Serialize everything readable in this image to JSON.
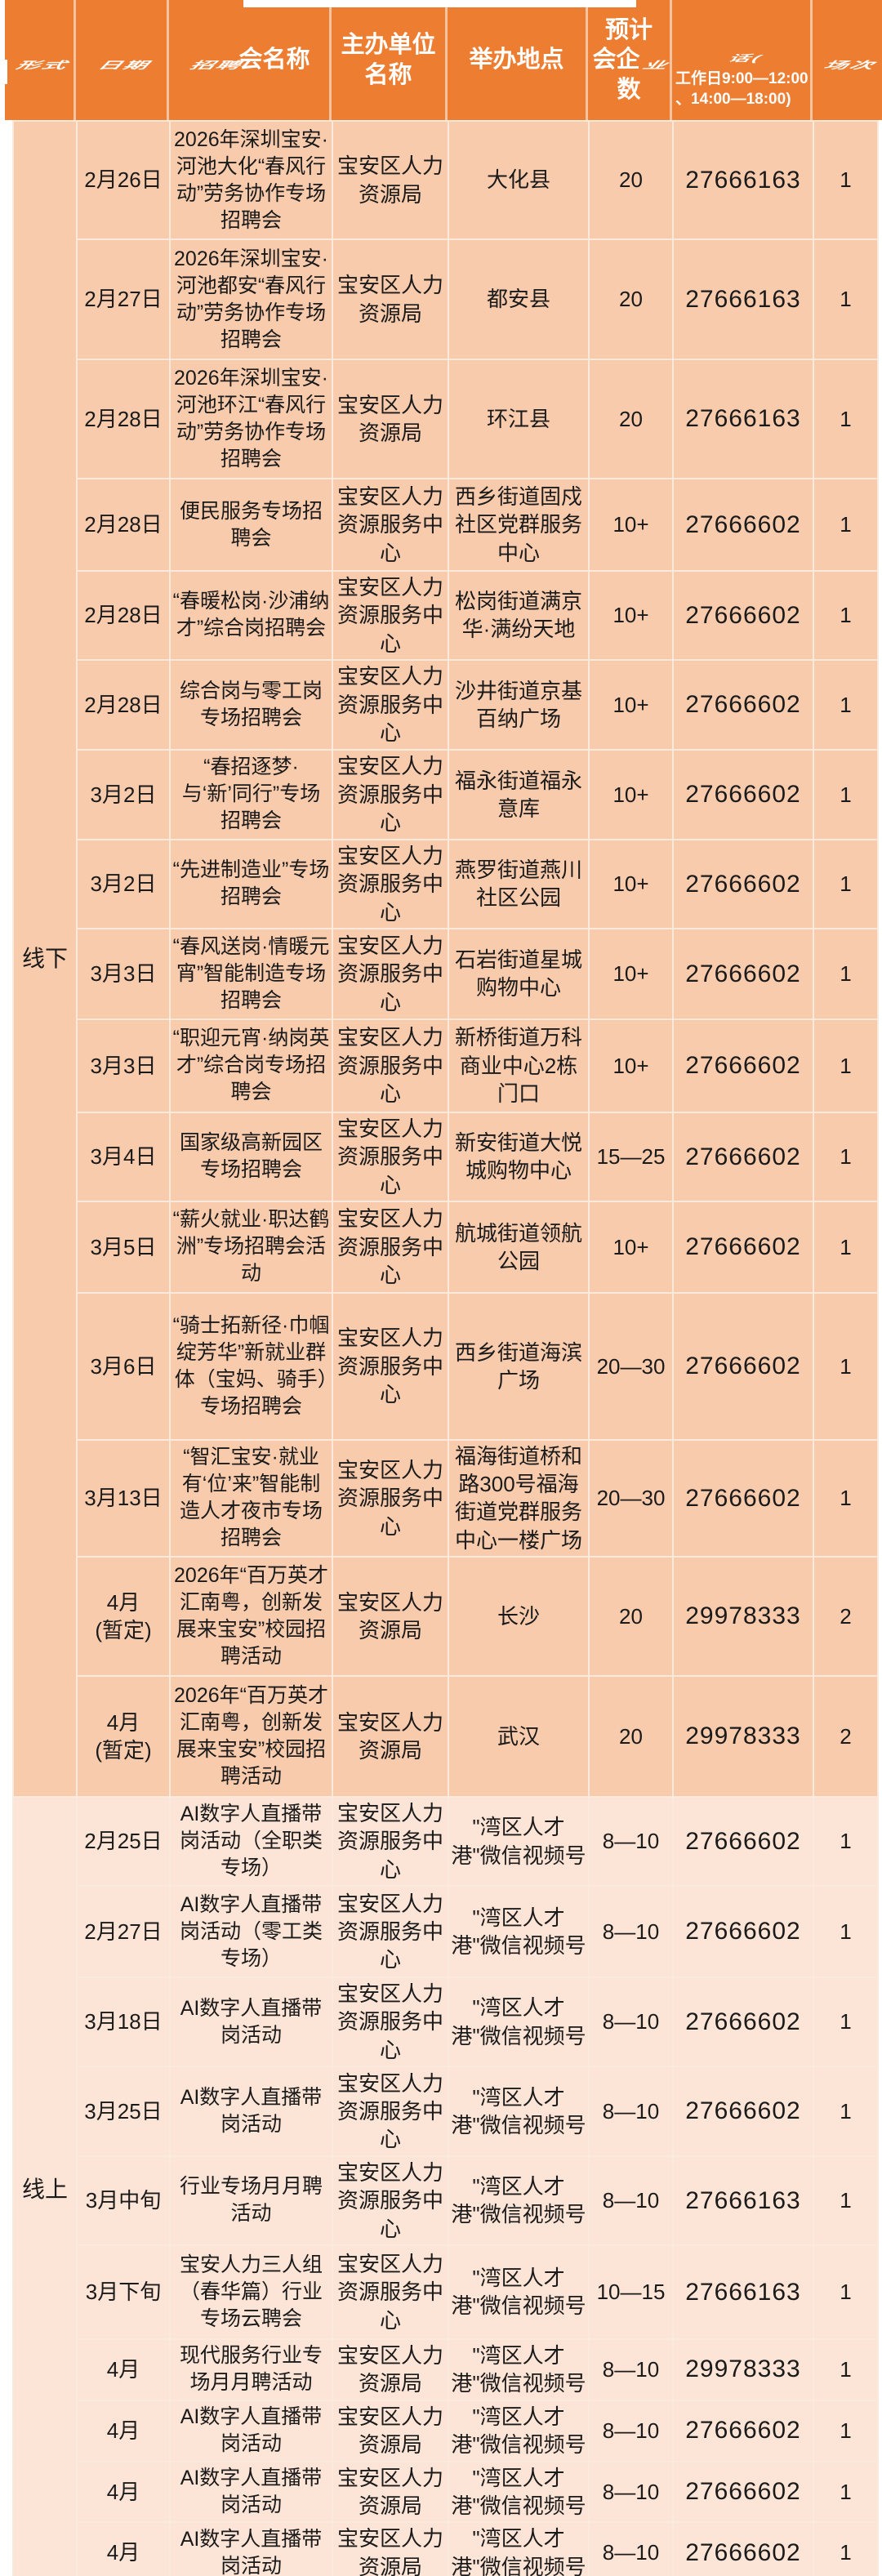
{
  "header": {
    "col_form": "形式",
    "col_date": "日期",
    "col_name_warped": "招聘",
    "col_name_rest": "会名称",
    "col_organizer": "主办单位名称",
    "col_venue": "举办地点",
    "col_companies": {
      "line1": "预计",
      "line2_plain": "会企",
      "line2_warped": "业",
      "line3": "数"
    },
    "col_phone": {
      "warped": "话(",
      "line1": "工作日9:00—12:00",
      "line2": "、14:00—18:00)"
    },
    "col_sessions": "场次"
  },
  "sections": [
    {
      "label": "线下",
      "rows": [
        {
          "date": "2月26日",
          "name": "2026年深圳宝安·河池大化“春风行动”劳务协作专场招聘会",
          "organizer": "宝安区人力资源局",
          "venue": "大化县",
          "companies": "20",
          "phone": "27666163",
          "sessions": "1"
        },
        {
          "date": "2月27日",
          "name": "2026年深圳宝安·河池都安“春风行动”劳务协作专场招聘会",
          "organizer": "宝安区人力资源局",
          "venue": "都安县",
          "companies": "20",
          "phone": "27666163",
          "sessions": "1"
        },
        {
          "date": "2月28日",
          "name": "2026年深圳宝安·河池环江“春风行动”劳务协作专场招聘会",
          "organizer": "宝安区人力资源局",
          "venue": "环江县",
          "companies": "20",
          "phone": "27666163",
          "sessions": "1"
        },
        {
          "date": "2月28日",
          "name": "便民服务专场招聘会",
          "organizer": "宝安区人力资源服务中心",
          "venue": "西乡街道固戍社区党群服务中心",
          "companies": "10+",
          "phone": "27666602",
          "sessions": "1"
        },
        {
          "date": "2月28日",
          "name": "“春暖松岗·沙浦纳才”综合岗招聘会",
          "organizer": "宝安区人力资源服务中心",
          "venue": "松岗街道满京华·满纷天地",
          "companies": "10+",
          "phone": "27666602",
          "sessions": "1"
        },
        {
          "date": "2月28日",
          "name": "综合岗与零工岗专场招聘会",
          "organizer": "宝安区人力资源服务中心",
          "venue": "沙井街道京基百纳广场",
          "companies": "10+",
          "phone": "27666602",
          "sessions": "1"
        },
        {
          "date": "3月2日",
          "name": "“春招逐梦·与‘新’同行”专场招聘会",
          "organizer": "宝安区人力资源服务中心",
          "venue": "福永街道福永意库",
          "companies": "10+",
          "phone": "27666602",
          "sessions": "1"
        },
        {
          "date": "3月2日",
          "name": "“先进制造业”专场招聘会",
          "organizer": "宝安区人力资源服务中心",
          "venue": "燕罗街道燕川社区公园",
          "companies": "10+",
          "phone": "27666602",
          "sessions": "1"
        },
        {
          "date": "3月3日",
          "name": "“春风送岗·情暖元宵”智能制造专场招聘会",
          "organizer": "宝安区人力资源服务中心",
          "venue": "石岩街道星城购物中心",
          "companies": "10+",
          "phone": "27666602",
          "sessions": "1"
        },
        {
          "date": "3月3日",
          "name": "“职迎元宵·纳岗英才”综合岗专场招聘会",
          "organizer": "宝安区人力资源服务中心",
          "venue": "新桥街道万科商业中心2栋门口",
          "companies": "10+",
          "phone": "27666602",
          "sessions": "1"
        },
        {
          "date": "3月4日",
          "name": "国家级高新园区专场招聘会",
          "organizer": "宝安区人力资源服务中心",
          "venue": "新安街道大悦城购物中心",
          "companies": "15—25",
          "phone": "27666602",
          "sessions": "1"
        },
        {
          "date": "3月5日",
          "name": "“薪火就业·职达鹤洲”专场招聘会活动",
          "organizer": "宝安区人力资源服务中心",
          "venue": "航城街道领航公园",
          "companies": "10+",
          "phone": "27666602",
          "sessions": "1"
        },
        {
          "date": "3月6日",
          "name": "“骑士拓新径·巾帼绽芳华”新就业群体（宝妈、骑手）专场招聘会",
          "organizer": "宝安区人力资源服务中心",
          "venue": "西乡街道海滨广场",
          "companies": "20—30",
          "phone": "27666602",
          "sessions": "1"
        },
        {
          "date": "3月13日",
          "name": "“智汇宝安·就业有‘位’来”智能制造人才夜市专场招聘会",
          "organizer": "宝安区人力资源服务中心",
          "venue": "福海街道桥和路300号福海街道党群服务中心一楼广场",
          "companies": "20—30",
          "phone": "27666602",
          "sessions": "1"
        },
        {
          "date": "4月\n(暂定)",
          "name": "2026年“百万英才汇南粤，创新发展来宝安”校园招聘活动",
          "organizer": "宝安区人力资源局",
          "venue": "长沙",
          "companies": "20",
          "phone": "29978333",
          "sessions": "2"
        },
        {
          "date": "4月\n(暂定)",
          "name": "2026年“百万英才汇南粤，创新发展来宝安”校园招聘活动",
          "organizer": "宝安区人力资源局",
          "venue": "武汉",
          "companies": "20",
          "phone": "29978333",
          "sessions": "2"
        }
      ]
    },
    {
      "label": "线上",
      "rows": [
        {
          "date": "2月25日",
          "name": "AI数字人直播带岗活动（全职类专场）",
          "organizer": "宝安区人力资源服务中心",
          "venue": "\"湾区人才港\"微信视频号",
          "companies": "8—10",
          "phone": "27666602",
          "sessions": "1"
        },
        {
          "date": "2月27日",
          "name": "AI数字人直播带岗活动（零工类专场）",
          "organizer": "宝安区人力资源服务中心",
          "venue": "\"湾区人才港\"微信视频号",
          "companies": "8—10",
          "phone": "27666602",
          "sessions": "1"
        },
        {
          "date": "3月18日",
          "name": "AI数字人直播带岗活动",
          "organizer": "宝安区人力资源服务中心",
          "venue": "\"湾区人才港\"微信视频号",
          "companies": "8—10",
          "phone": "27666602",
          "sessions": "1"
        },
        {
          "date": "3月25日",
          "name": "AI数字人直播带岗活动",
          "organizer": "宝安区人力资源服务中心",
          "venue": "\"湾区人才港\"微信视频号",
          "companies": "8—10",
          "phone": "27666602",
          "sessions": "1"
        },
        {
          "date": "3月中旬",
          "name": "行业专场月月聘活动",
          "organizer": "宝安区人力资源服务中心",
          "venue": "\"湾区人才港\"微信视频号",
          "companies": "8—10",
          "phone": "27666163",
          "sessions": "1"
        },
        {
          "date": "3月下旬",
          "name": "宝安人力三人组（春华篇）行业专场云聘会",
          "organizer": "宝安区人力资源服务中心",
          "venue": "\"湾区人才港\"微信视频号",
          "companies": "10—15",
          "phone": "27666163",
          "sessions": "1"
        },
        {
          "date": "4月",
          "name": "现代服务行业专场月月聘活动",
          "organizer": "宝安区人力资源局",
          "venue": "\"湾区人才港\"微信视频号",
          "companies": "8—10",
          "phone": "29978333",
          "sessions": "1"
        },
        {
          "date": "4月",
          "name": "AI数字人直播带岗活动",
          "organizer": "宝安区人力资源局",
          "venue": "\"湾区人才港\"微信视频号",
          "companies": "8—10",
          "phone": "27666602",
          "sessions": "1"
        },
        {
          "date": "4月",
          "name": "AI数字人直播带岗活动",
          "organizer": "宝安区人力资源局",
          "venue": "\"湾区人才港\"微信视频号",
          "companies": "8—10",
          "phone": "27666602",
          "sessions": "1"
        },
        {
          "date": "4月",
          "name": "AI数字人直播带岗活动",
          "organizer": "宝安区人力资源局",
          "venue": "\"湾区人才港\"微信视频号",
          "companies": "8—10",
          "phone": "27666602",
          "sessions": "1"
        }
      ]
    }
  ],
  "colors": {
    "header_bg": "#ED7D31",
    "offline_row_bg": "#F8CBAD",
    "online_row_bg": "#FCE4D6",
    "grid_line": "#FBE9DC",
    "header_text": "#FFFFFF",
    "body_text": "#1A1A1A",
    "page_bg": "#FFFFFF"
  }
}
